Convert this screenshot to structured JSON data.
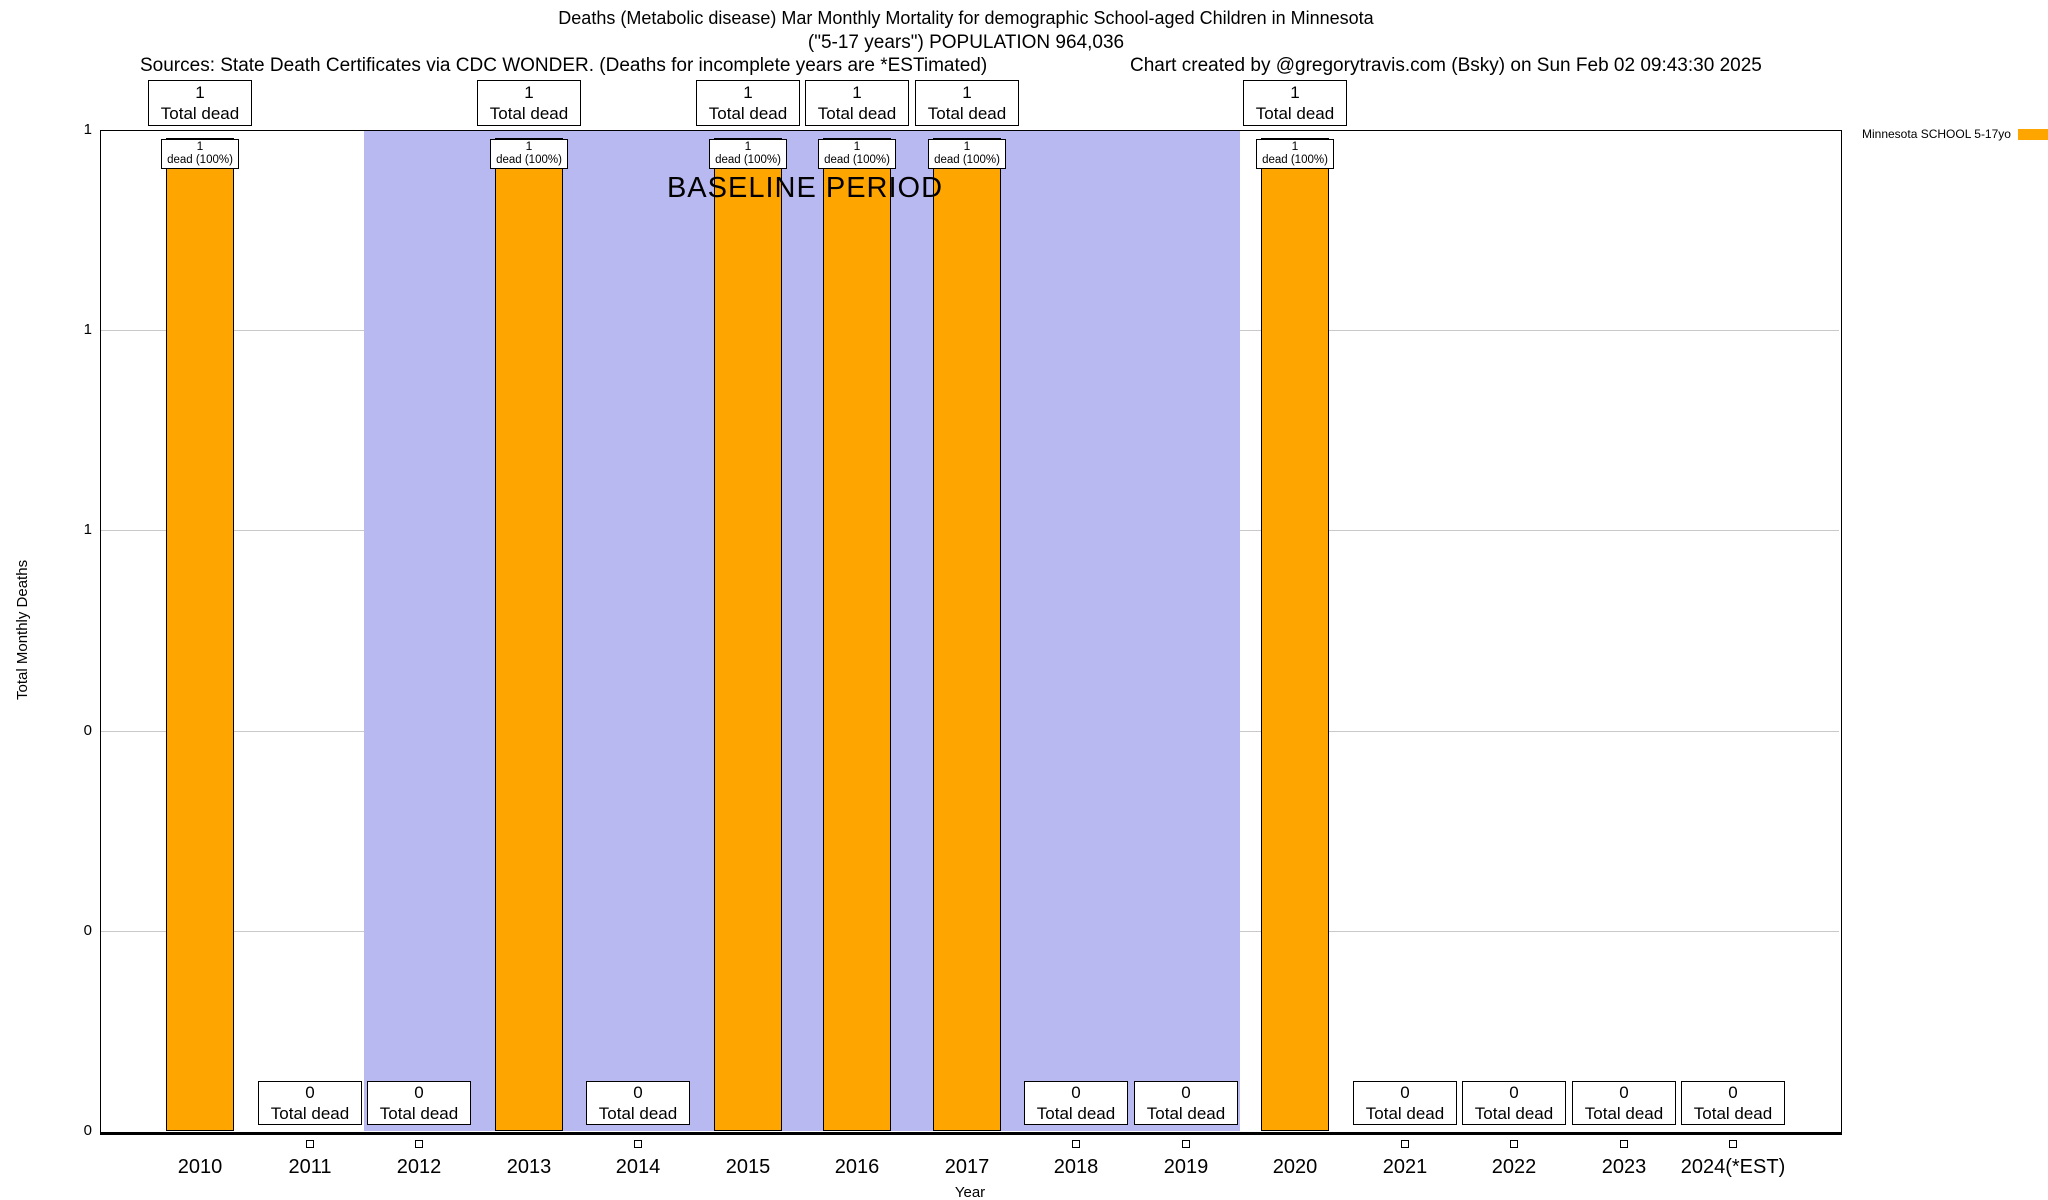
{
  "header": {
    "title_line1": "Deaths (Metabolic disease) Mar Monthly Mortality for demographic School-aged Children in Minnesota",
    "title_line2": "(\"5-17 years\") POPULATION 964,036",
    "sources": "Sources: State Death Certificates via CDC WONDER. (Deaths for incomplete years are *ESTimated)",
    "credit": "Chart created by @gregorytravis.com (Bsky) on Sun Feb 02 09:43:30 2025"
  },
  "chart_data": {
    "type": "bar",
    "title": "Deaths (Metabolic disease) Mar Monthly Mortality for demographic School-aged Children in Minnesota (\"5-17 years\") POPULATION 964,036",
    "xlabel": "Year",
    "ylabel": "Total Monthly Deaths",
    "ylim": [
      0,
      1
    ],
    "categories": [
      "2010",
      "2011",
      "2012",
      "2013",
      "2014",
      "2015",
      "2016",
      "2017",
      "2018",
      "2019",
      "2020",
      "2021",
      "2022",
      "2023",
      "2024(*EST)"
    ],
    "values": [
      1,
      0,
      0,
      1,
      0,
      1,
      1,
      1,
      0,
      0,
      1,
      0,
      0,
      0,
      0
    ],
    "y_tick_labels_bottom_to_top": [
      "0",
      "0",
      "0",
      "1",
      "1",
      "1"
    ],
    "grid": "horizontal",
    "bar_color": "#FFA500",
    "baseline_band": {
      "label": "BASELINE PERIOD",
      "from_category": "2012",
      "to_category": "2019",
      "color": "#b9b9f2"
    },
    "annotations": {
      "total_dead_label": "Total dead",
      "bar_top_label": "dead (100%)"
    },
    "legend": {
      "label": "Minnesota SCHOOL 5-17yo",
      "color": "#FFA500",
      "position": "top-right"
    }
  }
}
